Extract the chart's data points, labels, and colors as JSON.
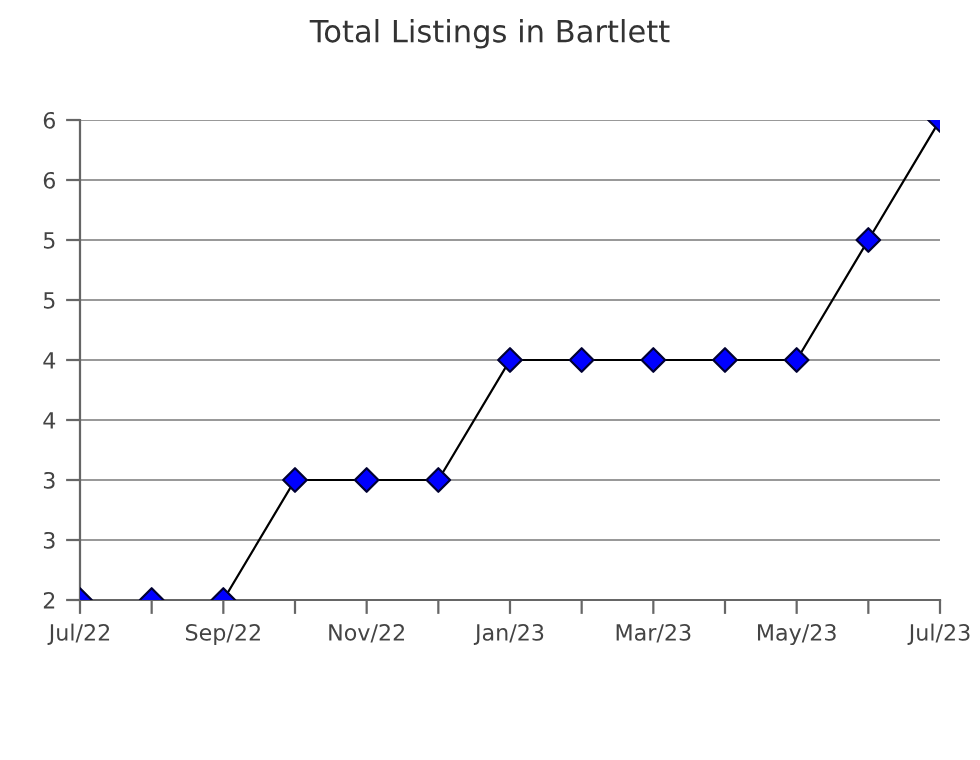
{
  "chart_data": {
    "type": "line",
    "title": "Total Listings in Bartlett",
    "categories": [
      "Jul/22",
      null,
      "Sep/22",
      null,
      "Nov/22",
      null,
      "Jan/23",
      null,
      "Mar/23",
      null,
      "May/23",
      null,
      "Jul/23"
    ],
    "series": [
      {
        "color": "#0000ff",
        "values": [
          2,
          2,
          2,
          3,
          3,
          3,
          4,
          4,
          4,
          4,
          4,
          5,
          6
        ]
      }
    ],
    "ylim": [
      2,
      6
    ],
    "yticks": [
      2,
      {
        "value": 2.5,
        "label": "3"
      },
      3,
      {
        "value": 3.5,
        "label": "4"
      },
      4,
      {
        "value": 4.5,
        "label": "5"
      },
      5,
      {
        "value": 5.5,
        "label": "6"
      },
      6
    ],
    "grid": "y",
    "marker": "diamond",
    "line_style": "solid",
    "legend": false
  }
}
